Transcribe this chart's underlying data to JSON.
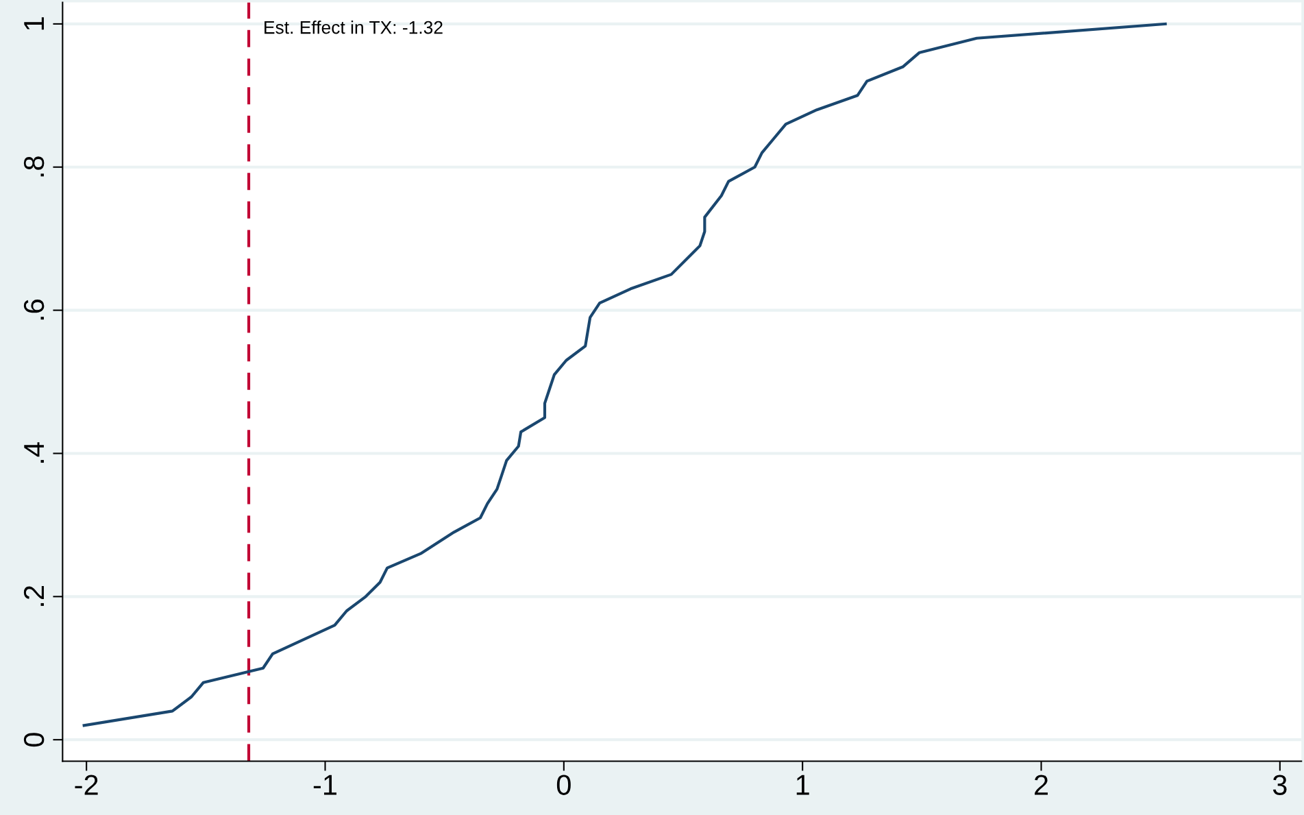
{
  "chart_data": {
    "type": "line",
    "x": [
      -2.01,
      -1.64,
      -1.56,
      -1.51,
      -1.26,
      -1.22,
      -0.96,
      -0.91,
      -0.83,
      -0.77,
      -0.74,
      -0.6,
      -0.46,
      -0.35,
      -0.32,
      -0.28,
      -0.26,
      -0.24,
      -0.19,
      -0.18,
      -0.08,
      -0.08,
      -0.06,
      -0.04,
      0.01,
      0.09,
      0.1,
      0.11,
      0.15,
      0.28,
      0.45,
      0.51,
      0.57,
      0.59,
      0.59,
      0.66,
      0.69,
      0.8,
      0.83,
      0.88,
      0.93,
      1.06,
      1.23,
      1.27,
      1.42,
      1.49,
      1.73,
      2.52
    ],
    "series": [
      {
        "color": "#1a476f",
        "values": [
          0.02,
          0.04,
          0.06,
          0.08,
          0.1,
          0.12,
          0.16,
          0.18,
          0.2,
          0.22,
          0.24,
          0.26,
          0.29,
          0.31,
          0.33,
          0.35,
          0.37,
          0.39,
          0.41,
          0.43,
          0.45,
          0.47,
          0.49,
          0.51,
          0.53,
          0.55,
          0.57,
          0.59,
          0.61,
          0.63,
          0.65,
          0.67,
          0.69,
          0.71,
          0.73,
          0.76,
          0.78,
          0.8,
          0.82,
          0.84,
          0.86,
          0.88,
          0.9,
          0.92,
          0.94,
          0.96,
          0.98,
          1.0
        ]
      }
    ],
    "xlim": [
      -2.1,
      3.09
    ],
    "xticks": [
      -2,
      -1,
      0,
      1,
      2,
      3
    ],
    "ylim": [
      -0.03,
      1.03
    ],
    "yticks": [
      0,
      {
        "value": 0.2,
        "label": ".2"
      },
      {
        "value": 0.4,
        "label": ".4"
      },
      {
        "value": 0.6,
        "label": ".6"
      },
      {
        "value": 0.8,
        "label": ".8"
      },
      1
    ],
    "grid": "y",
    "marker": "none",
    "line_style": "solid",
    "ref_lines": [
      {
        "axis": "x",
        "value": -1.32,
        "label": "Est. Effect in TX: -1.32",
        "color": "#c10534",
        "line_style": "dashed"
      }
    ]
  }
}
